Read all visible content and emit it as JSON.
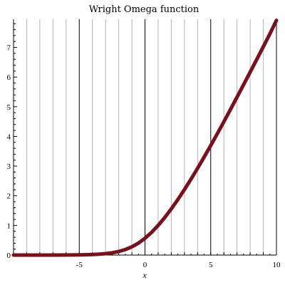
{
  "chart_data": {
    "type": "line",
    "title": "Wright   Omega  function",
    "xlabel": "x",
    "ylabel": "",
    "xlim": [
      -10,
      10
    ],
    "ylim": [
      0,
      7.95
    ],
    "x_ticks": [
      -5,
      0,
      5,
      10
    ],
    "x_tick_labels": [
      "-5",
      "0",
      "5",
      "10"
    ],
    "y_ticks": [
      0,
      1,
      2,
      3,
      4,
      5,
      6,
      7
    ],
    "y_tick_labels": [
      "0",
      "1",
      "2",
      "3",
      "4",
      "5",
      "6",
      "7"
    ],
    "grid": "vertical",
    "legend": "none",
    "line_color": "#7b0f1c",
    "series": [
      {
        "x": [
          -10,
          -9,
          -8,
          -7,
          -6,
          -5,
          -4.5,
          -4,
          -3.5,
          -3,
          -2.5,
          -2,
          -1.5,
          -1,
          -0.5,
          0,
          0.5,
          1,
          1.5,
          2,
          2.5,
          3,
          3.5,
          4,
          4.5,
          5,
          5.5,
          6,
          6.5,
          7,
          7.5,
          8,
          8.5,
          9,
          9.5,
          10
        ],
        "y": [
          4.54e-05,
          0.000123,
          0.000335,
          0.000911,
          0.00247,
          0.00669,
          0.011,
          0.0179,
          0.0292,
          0.0474,
          0.0758,
          0.12,
          0.1853,
          0.2785,
          0.4036,
          0.5671,
          0.7659,
          1.0,
          1.2645,
          1.5571,
          1.8728,
          2.2079,
          2.5596,
          2.9258,
          3.3036,
          3.6935,
          4.0904,
          4.4959,
          4.9069,
          5.3235,
          5.7441,
          6.1678,
          6.5948,
          7.0242,
          7.4567,
          7.9118
        ]
      }
    ]
  }
}
